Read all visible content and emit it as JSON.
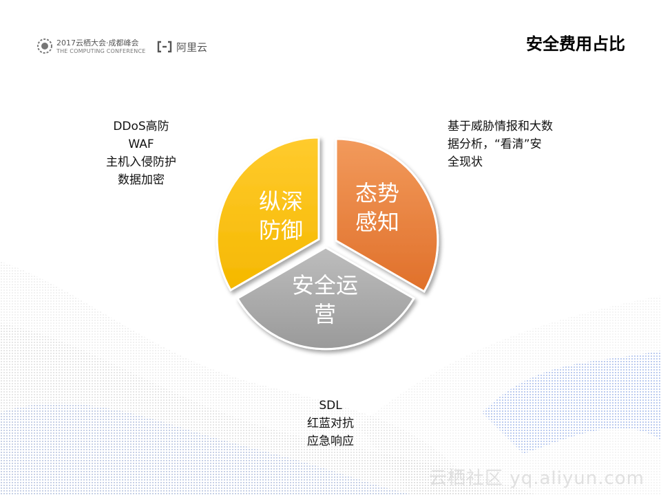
{
  "header": {
    "conference_line1": "2017云栖大会·成都峰会",
    "conference_line2": "THE COMPUTING CONFERENCE",
    "brand": "阿里云",
    "title": "安全费用占比"
  },
  "segments": [
    {
      "id": "situation",
      "lines": [
        "态势",
        "感知"
      ],
      "color": "#ED7D31"
    },
    {
      "id": "operations",
      "lines": [
        "安全运",
        "营"
      ],
      "color": "#A5A5A5"
    },
    {
      "id": "defense",
      "lines": [
        "纵深",
        "防御"
      ],
      "color": "#FFC000"
    }
  ],
  "notes": {
    "defense": [
      "DDoS高防",
      "WAF",
      "主机入侵防护",
      "数据加密"
    ],
    "situation": [
      "基于威胁情报和大数",
      "据分析，“看清”安",
      "全现状"
    ],
    "operations": [
      "SDL",
      "红蓝对抗",
      "应急响应"
    ]
  },
  "watermark": "云栖社区 yq.aliyun.com"
}
